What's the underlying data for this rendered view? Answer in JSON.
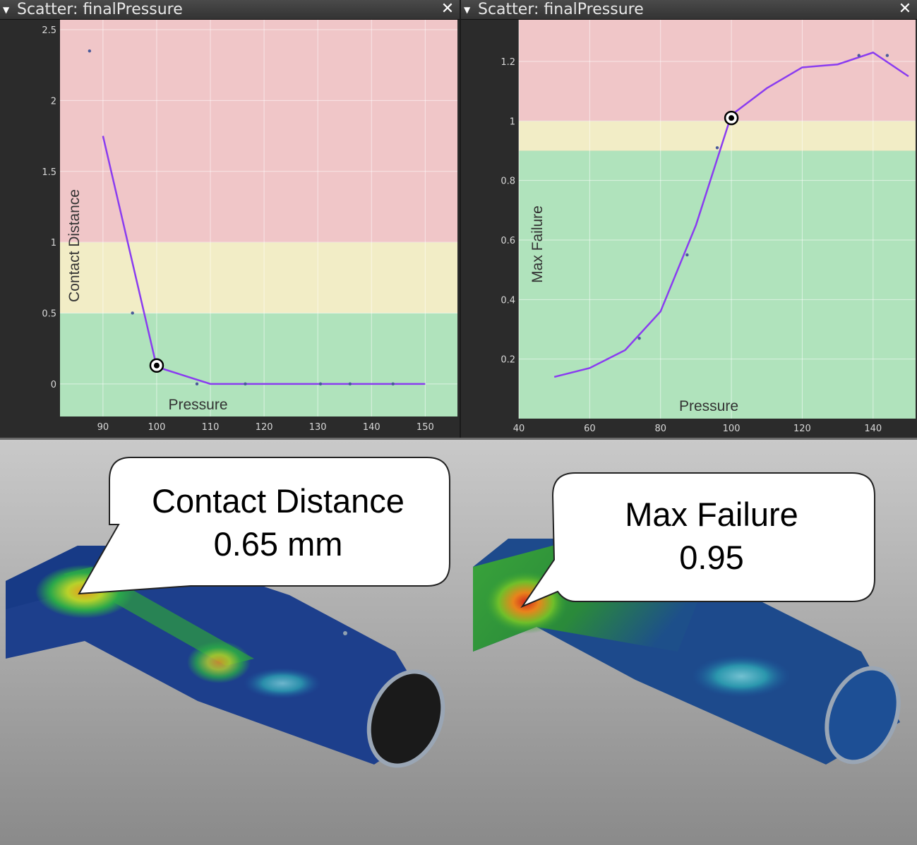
{
  "left_panel": {
    "title": "Scatter: finalPressure",
    "close_icon": "close-icon",
    "collapse_icon": "triangle-down-icon"
  },
  "right_panel": {
    "title": "Scatter: finalPressure",
    "close_icon": "close-icon",
    "collapse_icon": "triangle-down-icon"
  },
  "colors": {
    "red_zone": "#f0c6c8",
    "yellow_zone": "#f2edc6",
    "green_zone": "#b0e3bc",
    "line": "#8a3cf0",
    "marker": "#000000"
  },
  "chart_data": [
    {
      "type": "line",
      "xlabel": "Pressure",
      "ylabel": "Contact Distance",
      "xlim": [
        82,
        156
      ],
      "ylim": [
        -0.23,
        2.57
      ],
      "xticks": [
        90,
        100,
        110,
        120,
        130,
        140,
        150
      ],
      "yticks": [
        0,
        0.5,
        1,
        1.5,
        2,
        2.5
      ],
      "zones": [
        {
          "name": "green",
          "from": -0.23,
          "to": 0.5
        },
        {
          "name": "yellow",
          "from": 0.5,
          "to": 1.0
        },
        {
          "name": "red",
          "from": 1.0,
          "to": 2.57
        }
      ],
      "line": {
        "x": [
          90,
          100,
          110,
          120,
          130,
          140,
          150
        ],
        "y": [
          1.75,
          0.12,
          0.0,
          0.0,
          0.0,
          0.0,
          0.0
        ]
      },
      "points": {
        "x": [
          87.5,
          95.5,
          107.5,
          116.5,
          130.5,
          136,
          144
        ],
        "y": [
          2.35,
          0.5,
          0.0,
          0.0,
          0.0,
          0.0,
          0.0
        ]
      },
      "highlight": {
        "x": 100,
        "y": 0.13
      }
    },
    {
      "type": "line",
      "xlabel": "Pressure",
      "ylabel": "Max Failure",
      "xlim": [
        40,
        152
      ],
      "ylim": [
        0.0,
        1.34
      ],
      "xticks": [
        40,
        60,
        80,
        100,
        120,
        140
      ],
      "yticks": [
        0.2,
        0.4,
        0.6,
        0.8,
        1,
        1.2
      ],
      "zones": [
        {
          "name": "green",
          "from": 0.0,
          "to": 0.9
        },
        {
          "name": "yellow",
          "from": 0.9,
          "to": 1.0
        },
        {
          "name": "red",
          "from": 1.0,
          "to": 1.34
        }
      ],
      "line": {
        "x": [
          50,
          60,
          70,
          80,
          90,
          100,
          110,
          120,
          130,
          140,
          150
        ],
        "y": [
          0.14,
          0.17,
          0.23,
          0.36,
          0.65,
          1.02,
          1.11,
          1.18,
          1.19,
          1.23,
          1.15
        ]
      },
      "points": {
        "x": [
          74,
          87.5,
          96,
          136,
          144
        ],
        "y": [
          0.27,
          0.55,
          0.91,
          1.22,
          1.22
        ]
      },
      "highlight": {
        "x": 100,
        "y": 1.01
      }
    }
  ],
  "callouts": {
    "left": {
      "line1": "Contact Distance",
      "line2": "0.65 mm"
    },
    "right": {
      "line1": "Max Failure",
      "line2": "0.95"
    }
  }
}
